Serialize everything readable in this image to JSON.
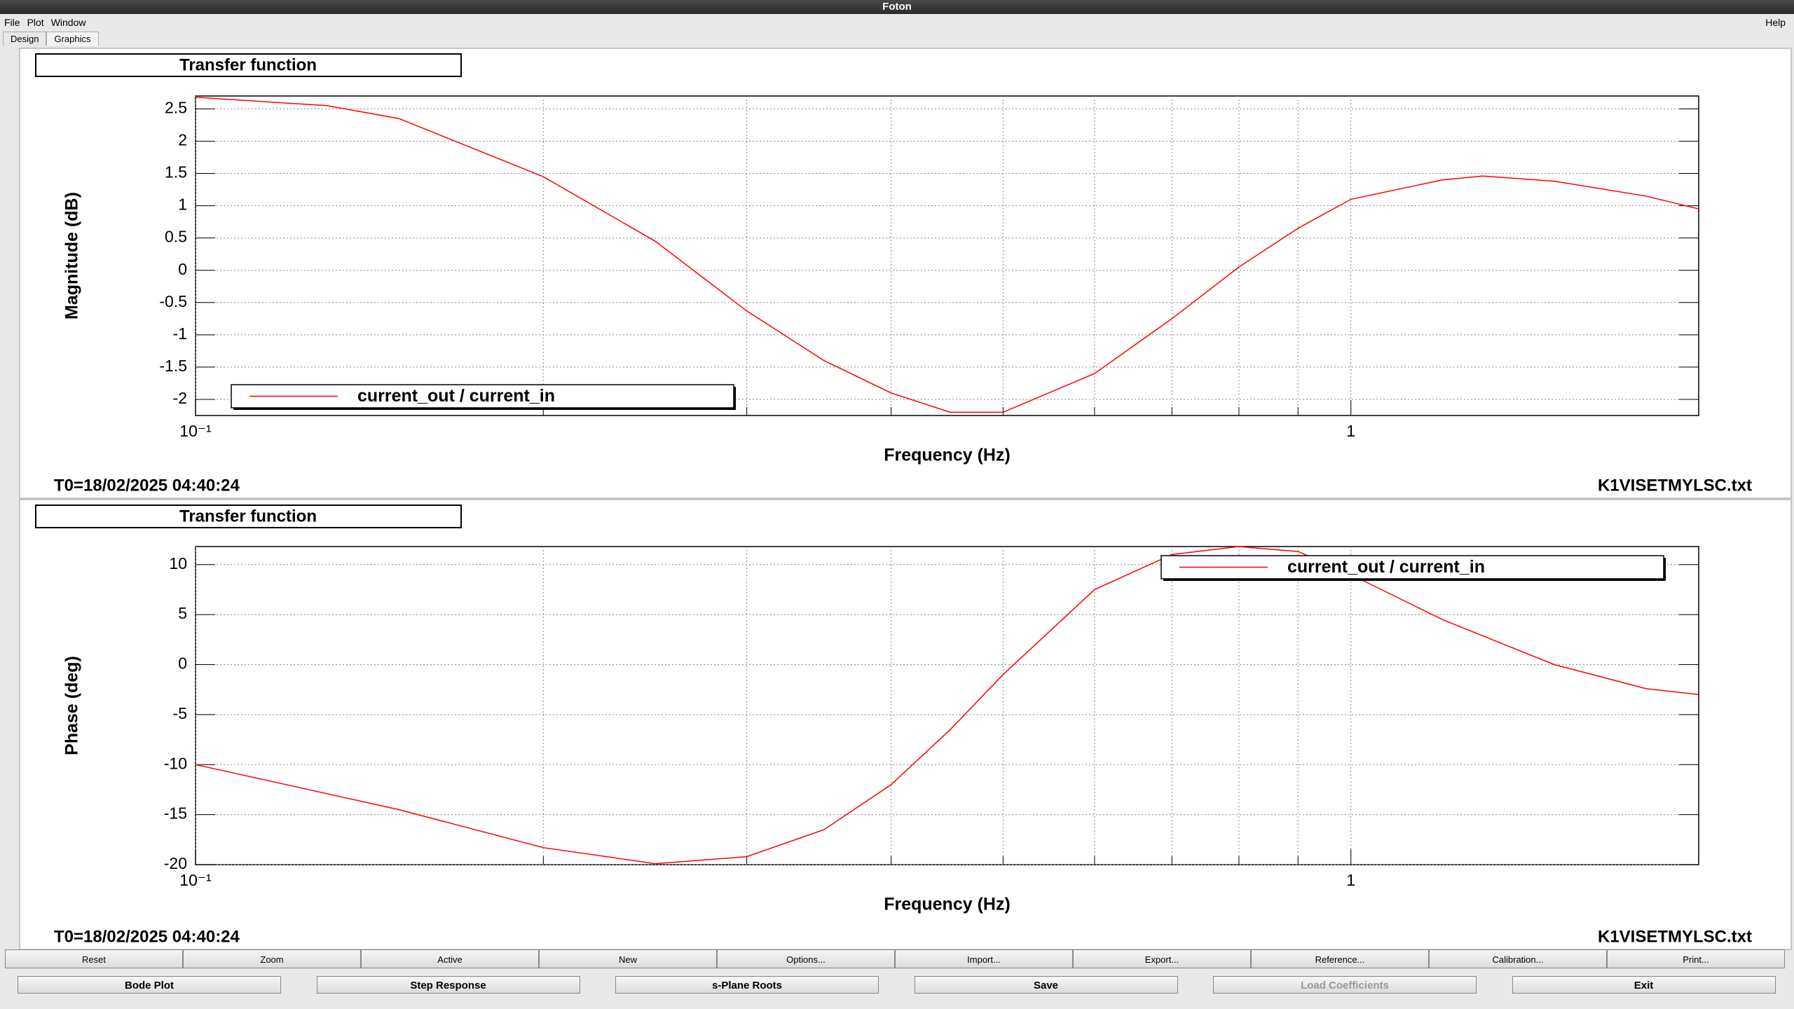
{
  "window": {
    "title": "Foton"
  },
  "menu": {
    "items": [
      "File",
      "Plot",
      "Window"
    ],
    "help": "Help"
  },
  "tabs": [
    "Design",
    "Graphics"
  ],
  "chart_data": [
    {
      "type": "line",
      "title": "Transfer function",
      "x_label": "Frequency (Hz)",
      "y_label": "Magnitude (dB)",
      "x": [
        0.1,
        0.13,
        0.15,
        0.2,
        0.25,
        0.3,
        0.35,
        0.4,
        0.45,
        0.5,
        0.6,
        0.7,
        0.8,
        0.9,
        1.0,
        1.2,
        1.3,
        1.5,
        1.8,
        2.0
      ],
      "series": [
        {
          "name": "current_out / current_in",
          "color": "#ff0000",
          "values": [
            2.68,
            2.55,
            2.35,
            1.45,
            0.45,
            -0.63,
            -1.4,
            -1.9,
            -2.2,
            -2.2,
            -1.6,
            -0.75,
            0.05,
            0.65,
            1.1,
            1.4,
            1.46,
            1.38,
            1.15,
            0.95
          ]
        }
      ],
      "xlim": [
        0.1,
        2
      ],
      "x_log": true,
      "xticks": [
        {
          "value": 0.1,
          "label": "10⁻¹"
        },
        1
      ],
      "xgrid": [
        0.2,
        0.3,
        0.4,
        0.5,
        0.6,
        0.7,
        0.8,
        0.9
      ],
      "ylim": [
        -2.25,
        2.7
      ],
      "yticks": [
        -2,
        -1.5,
        -1,
        -0.5,
        0,
        0.5,
        1,
        1.5,
        2,
        2.5
      ],
      "grid": true,
      "legend": "bottom-left",
      "footer_left": "T0=18/02/2025 04:40:24",
      "footer_right": "K1VISETMYLSC.txt"
    },
    {
      "type": "line",
      "title": "Transfer function",
      "x_label": "Frequency (Hz)",
      "y_label": "Phase (deg)",
      "x": [
        0.1,
        0.15,
        0.2,
        0.25,
        0.3,
        0.35,
        0.4,
        0.45,
        0.5,
        0.6,
        0.7,
        0.8,
        0.9,
        1.0,
        1.2,
        1.5,
        1.8,
        2.0
      ],
      "series": [
        {
          "name": "current_out / current_in",
          "color": "#ff0000",
          "values": [
            -10,
            -14.5,
            -18.3,
            -19.9,
            -19.2,
            -16.5,
            -12,
            -6.5,
            -1,
            7.5,
            11,
            11.8,
            11.3,
            9,
            4.5,
            0,
            -2.4,
            -3
          ]
        }
      ],
      "xlim": [
        0.1,
        2
      ],
      "x_log": true,
      "xticks": [
        {
          "value": 0.1,
          "label": "10⁻¹"
        },
        1
      ],
      "xgrid": [
        0.2,
        0.3,
        0.4,
        0.5,
        0.6,
        0.7,
        0.8,
        0.9
      ],
      "ylim": [
        -20,
        11.8
      ],
      "yticks": [
        -20,
        -15,
        -10,
        -5,
        0,
        5,
        10
      ],
      "grid": true,
      "legend": "top-right",
      "footer_left": "T0=18/02/2025 04:40:24",
      "footer_right": "K1VISETMYLSC.txt"
    }
  ],
  "toolbar": [
    "Reset",
    "Zoom",
    "Active",
    "New",
    "Options...",
    "Import...",
    "Export...",
    "Reference...",
    "Calibration...",
    "Print..."
  ],
  "actions": [
    "Bode Plot",
    "Step Response",
    "s-Plane Roots",
    "Save",
    "Load Coefficients",
    "Exit"
  ]
}
